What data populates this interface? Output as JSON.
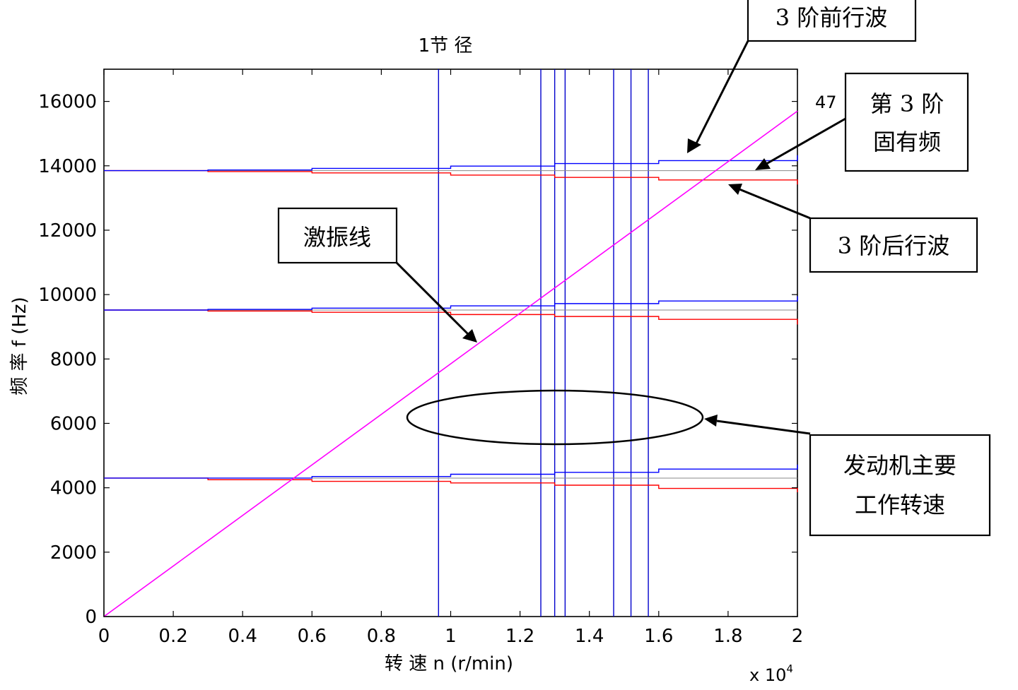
{
  "chart_data": {
    "type": "line",
    "title": "1节 径",
    "xlabel": "转 速   n (r/min)",
    "ylabel": "频 率   f (Hz)",
    "x_multiplier_base": "x 10",
    "x_multiplier_exp": "4",
    "xlim": [
      0,
      2
    ],
    "ylim": [
      0,
      17000
    ],
    "x_ticks": [
      0,
      0.2,
      0.4,
      0.6,
      0.8,
      1,
      1.2,
      1.4,
      1.6,
      1.8,
      2
    ],
    "x_tick_labels": [
      "0",
      "0.2",
      "0.4",
      "0.6",
      "0.8",
      "1",
      "1.2",
      "1.4",
      "1.6",
      "1.8",
      "2"
    ],
    "y_ticks": [
      0,
      2000,
      4000,
      6000,
      8000,
      10000,
      12000,
      14000,
      16000
    ],
    "y_tick_labels": [
      "0",
      "2000",
      "4000",
      "6000",
      "8000",
      "10000",
      "12000",
      "14000",
      "16000"
    ],
    "grid": false,
    "excitation_line": {
      "color": "#ff00ff",
      "points": [
        [
          0,
          0
        ],
        [
          2,
          15700
        ]
      ],
      "order_label": "47"
    },
    "vertical_speed_lines": {
      "color": "#0000cc",
      "x": [
        0.965,
        1.26,
        1.3,
        1.33,
        1.47,
        1.52,
        1.57
      ]
    },
    "mode_groups": [
      {
        "base": 4300,
        "forward": [
          [
            0,
            4300
          ],
          [
            0.3,
            4300
          ],
          [
            0.6,
            4350
          ],
          [
            1.0,
            4420
          ],
          [
            1.3,
            4480
          ],
          [
            1.6,
            4580
          ],
          [
            2.0,
            4720
          ]
        ],
        "backward": [
          [
            0,
            4300
          ],
          [
            0.3,
            4250
          ],
          [
            0.6,
            4200
          ],
          [
            1.0,
            4150
          ],
          [
            1.3,
            4080
          ],
          [
            1.6,
            3980
          ],
          [
            2.0,
            3860
          ]
        ]
      },
      {
        "base": 9520,
        "forward": [
          [
            0,
            9520
          ],
          [
            0.3,
            9540
          ],
          [
            0.6,
            9580
          ],
          [
            1.0,
            9650
          ],
          [
            1.3,
            9720
          ],
          [
            1.6,
            9800
          ],
          [
            2.0,
            9950
          ]
        ],
        "backward": [
          [
            0,
            9520
          ],
          [
            0.3,
            9490
          ],
          [
            0.6,
            9450
          ],
          [
            1.0,
            9380
          ],
          [
            1.3,
            9320
          ],
          [
            1.6,
            9230
          ],
          [
            2.0,
            9070
          ]
        ]
      },
      {
        "base": 13850,
        "forward": [
          [
            0,
            13850
          ],
          [
            0.3,
            13870
          ],
          [
            0.6,
            13920
          ],
          [
            1.0,
            13990
          ],
          [
            1.3,
            14070
          ],
          [
            1.6,
            14160
          ],
          [
            2.0,
            14330
          ]
        ],
        "backward": [
          [
            0,
            13850
          ],
          [
            0.3,
            13820
          ],
          [
            0.6,
            13780
          ],
          [
            1.0,
            13710
          ],
          [
            1.3,
            13640
          ],
          [
            1.6,
            13560
          ],
          [
            2.0,
            13420
          ]
        ]
      }
    ],
    "series_colors": {
      "forward": "#0000ff",
      "backward": "#ff0000",
      "base": "#888888"
    }
  },
  "annotations": {
    "forward_wave": "3 阶前行波",
    "natural_freq_line1": "第 3 阶",
    "natural_freq_line2": "固有频",
    "backward_wave": "3 阶后行波",
    "excitation": "激振线",
    "engine_speed_line1": "发动机主要",
    "engine_speed_line2": "工作转速"
  }
}
